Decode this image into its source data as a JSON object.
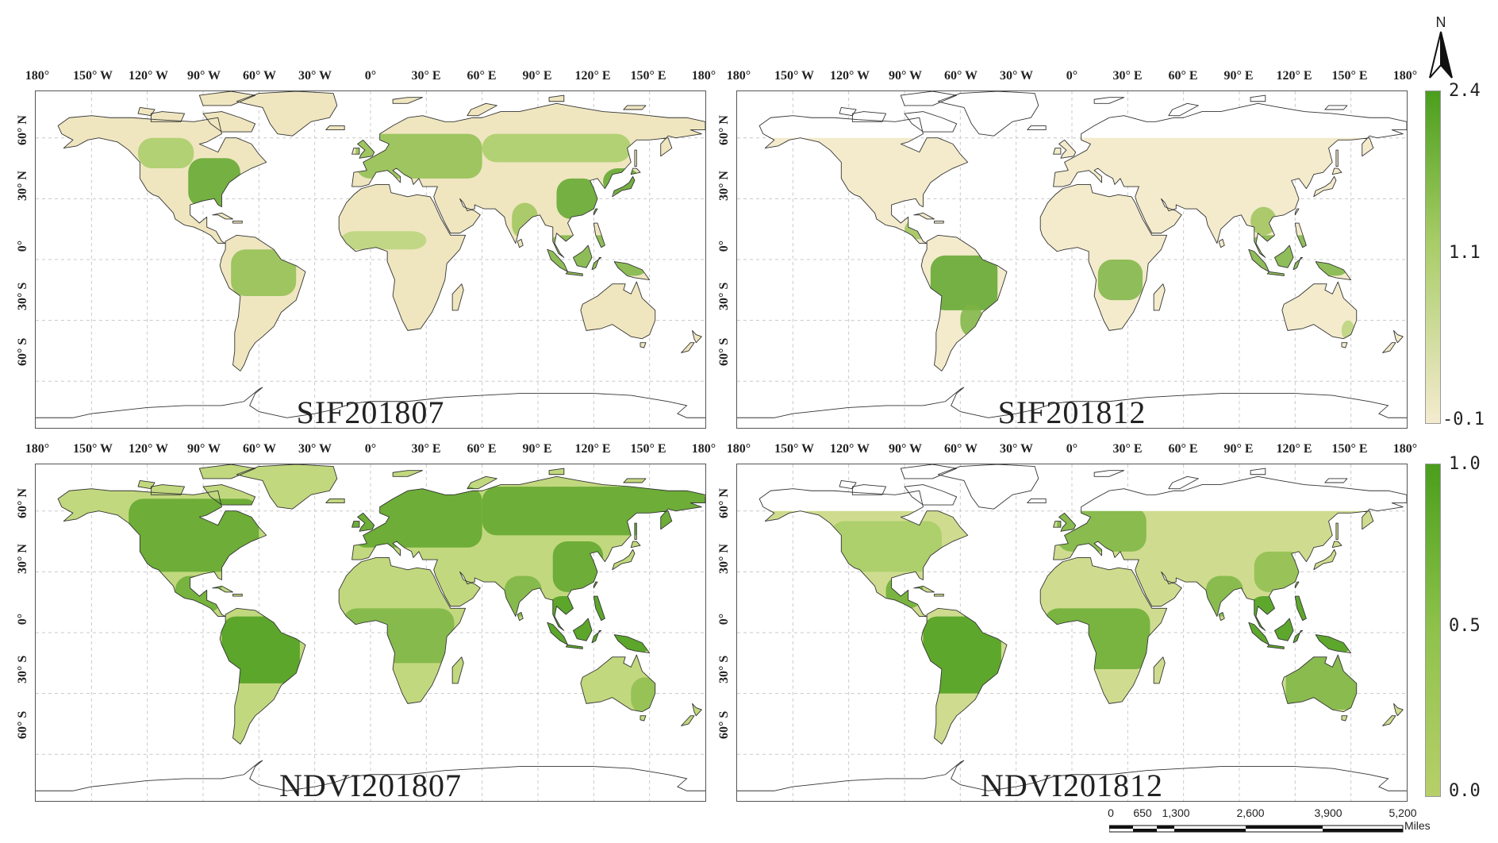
{
  "lon_labels": [
    "180°",
    "150° W",
    "120° W",
    "90° W",
    "60° W",
    "30° W",
    "0°",
    "30° E",
    "60° E",
    "90° E",
    "120° E",
    "150° E",
    "180°"
  ],
  "lat_labels": [
    "60° N",
    "30° N",
    "0°",
    "30° S",
    "60° S"
  ],
  "panels": [
    {
      "id": "sif201807",
      "title": "SIF201807",
      "variable": "SIF",
      "month": "2018-07"
    },
    {
      "id": "sif201812",
      "title": "SIF201812",
      "variable": "SIF",
      "month": "2018-12"
    },
    {
      "id": "ndvi201807",
      "title": "NDVI201807",
      "variable": "NDVI",
      "month": "2018-07"
    },
    {
      "id": "ndvi201812",
      "title": "NDVI201812",
      "variable": "NDVI",
      "month": "2018-12"
    }
  ],
  "legends": {
    "sif": {
      "max": "2.4",
      "mid": "1.1",
      "min": "-0.1",
      "color_high": "#4a9e1c",
      "color_low": "#f5ebcf"
    },
    "ndvi": {
      "max": "1.0",
      "mid": "0.5",
      "min": "0.0",
      "color_high": "#4a9e1c",
      "color_low": "#b7cf6a"
    }
  },
  "north_arrow": {
    "label": "N"
  },
  "scale_bar": {
    "ticks": [
      "0",
      "650",
      "1,300",
      "2,600",
      "3,900",
      "5,200"
    ],
    "unit": "Miles"
  },
  "colors": {
    "land_pale": "#efe6c0",
    "veg_mid": "#9fc45a",
    "veg_dark": "#4a9e1c",
    "grid": "#c8c8c8",
    "coast": "#333333"
  }
}
